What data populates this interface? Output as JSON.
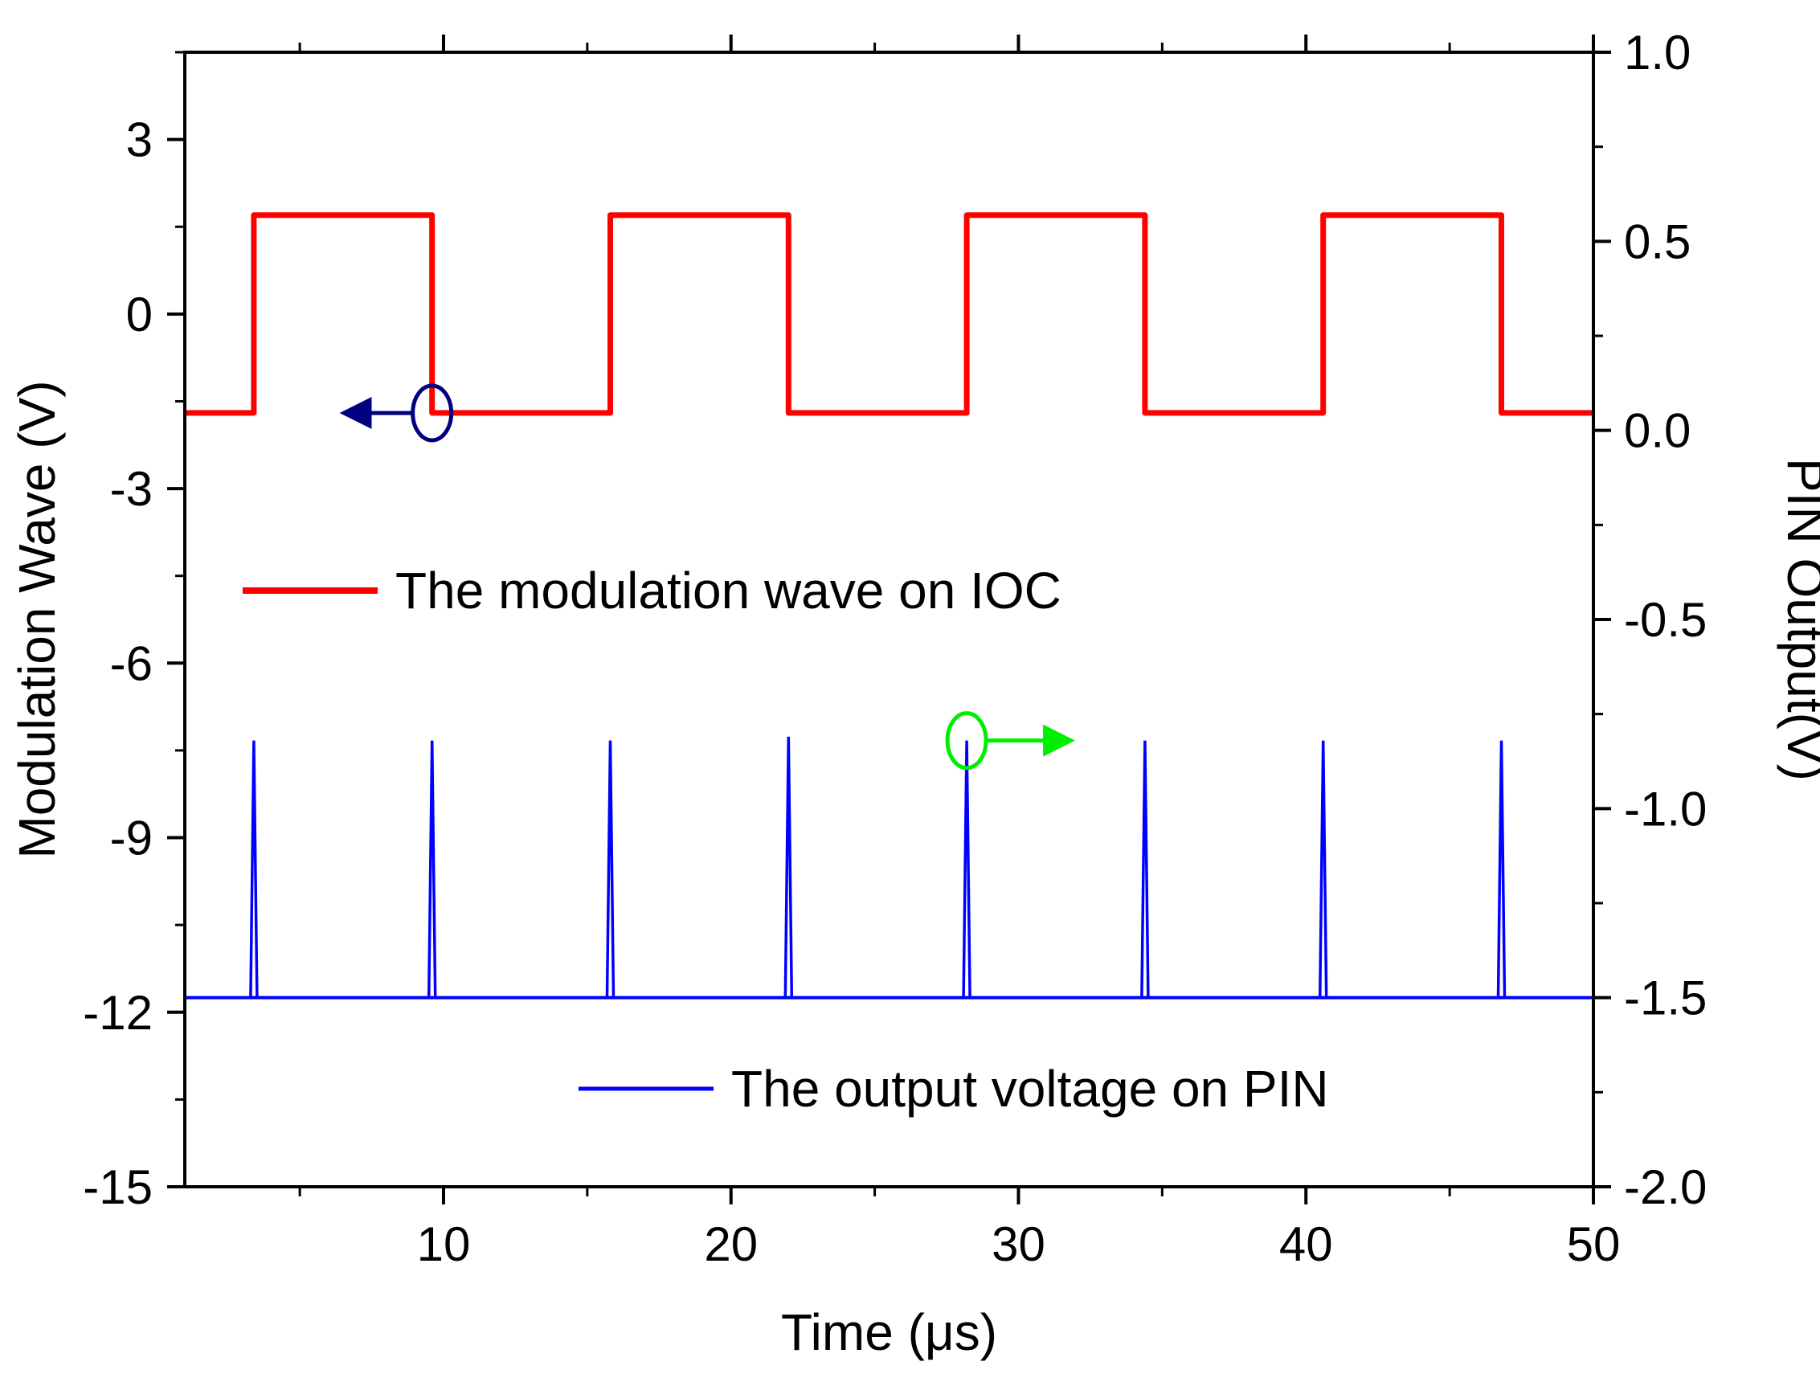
{
  "chart_data": {
    "type": "line",
    "title": "",
    "xlabel": "Time (μs)",
    "ylabel_left": "Modulation Wave (V)",
    "ylabel_right": "PIN Output(V)",
    "xlim": [
      1,
      50
    ],
    "ylim_left": [
      -15,
      4.5
    ],
    "ylim_right": [
      -2.0,
      1.0
    ],
    "x_ticks": [
      10,
      20,
      30,
      40,
      50
    ],
    "x_tick_labels": [
      "10",
      "20",
      "30",
      "40",
      "50"
    ],
    "y_left_ticks": [
      3,
      0,
      -3,
      -6,
      -9,
      -12,
      -15
    ],
    "y_left_tick_labels": [
      "3",
      "0",
      "-3",
      "-6",
      "-9",
      "-12",
      "-15"
    ],
    "y_right_ticks": [
      1.0,
      0.5,
      0.0,
      -0.5,
      -1.0,
      -1.5,
      -2.0
    ],
    "y_right_tick_labels": [
      "1.0",
      "0.5",
      "0.0",
      "-0.5",
      "-1.0",
      "-1.5",
      "-2.0"
    ],
    "grid": false,
    "series": [
      {
        "name": "The modulation wave on IOC",
        "axis": "left",
        "color": "#ff0000",
        "style": "square-wave",
        "low": -1.7,
        "high": 1.7,
        "rising_edges": [
          3.4,
          15.8,
          28.2,
          40.6
        ],
        "falling_edges": [
          9.6,
          22.0,
          34.4,
          46.8
        ]
      },
      {
        "name": "The output voltage on PIN",
        "axis": "right",
        "color": "#0000ff",
        "style": "spikes",
        "baseline": -1.5,
        "spike_times": [
          3.4,
          9.6,
          15.8,
          22.0,
          28.2,
          34.4,
          40.6,
          46.8
        ],
        "spike_peaks": [
          -0.82,
          -0.82,
          -0.82,
          -0.81,
          -0.82,
          -0.82,
          -0.82,
          -0.82
        ]
      }
    ],
    "legend": [
      {
        "label": "The modulation wave on IOC",
        "color": "#ff0000"
      },
      {
        "label": "The output voltage on PIN",
        "color": "#0000ff"
      }
    ],
    "annotations": [
      {
        "type": "circle-arrow",
        "points_to": "left axis",
        "color": "#000080",
        "x": 9.6,
        "y_axis": "left",
        "y": -1.7
      },
      {
        "type": "circle-arrow",
        "points_to": "right axis",
        "color": "#00ee00",
        "x": 28.2,
        "y_axis": "right",
        "y": -0.82
      }
    ]
  }
}
